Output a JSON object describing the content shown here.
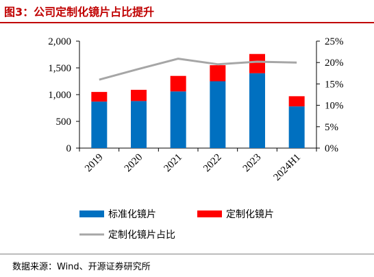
{
  "figure": {
    "title": "图3：公司定制化镜片占比提升",
    "source": "数据来源：Wind、开源证券研究所"
  },
  "colors": {
    "standard": "#0070c0",
    "custom": "#ff0000",
    "ratio_line": "#a6a6a6",
    "axis": "#000000",
    "title": "#c00000"
  },
  "chart_data": {
    "type": "bar",
    "stacked": true,
    "categories": [
      "2019",
      "2020",
      "2021",
      "2022",
      "2023",
      "2024H1"
    ],
    "series": [
      {
        "name": "标准化镜片",
        "type": "bar",
        "axis": "left",
        "color": "#0070c0",
        "values": [
          870,
          880,
          1060,
          1250,
          1400,
          780
        ]
      },
      {
        "name": "定制化镜片",
        "type": "bar",
        "axis": "left",
        "color": "#ff0000",
        "values": [
          180,
          210,
          290,
          300,
          360,
          190
        ]
      },
      {
        "name": "定制化镜片占比",
        "type": "line",
        "axis": "right",
        "color": "#a6a6a6",
        "values": [
          16.0,
          18.5,
          20.9,
          19.6,
          20.2,
          20.0
        ]
      }
    ],
    "y_left": {
      "min": 0,
      "max": 2000,
      "ticks": [
        "0",
        "500",
        "1,000",
        "1,500",
        "2,000"
      ]
    },
    "y_right": {
      "min": 0,
      "max": 25,
      "ticks": [
        "0%",
        "5%",
        "10%",
        "15%",
        "20%",
        "25%"
      ]
    },
    "legend": [
      {
        "label": "标准化镜片",
        "kind": "bar",
        "color": "#0070c0"
      },
      {
        "label": "定制化镜片",
        "kind": "bar",
        "color": "#ff0000"
      },
      {
        "label": "定制化镜片占比",
        "kind": "line",
        "color": "#a6a6a6"
      }
    ],
    "legend_position": "bottom",
    "grid": false
  }
}
